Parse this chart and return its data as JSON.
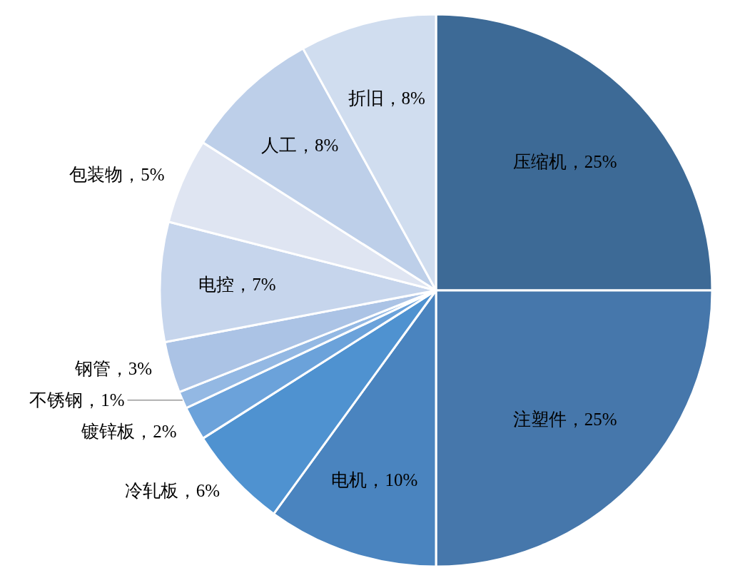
{
  "chart_data": {
    "type": "pie",
    "categories": [
      "压缩机",
      "注塑件",
      "电机",
      "冷轧板",
      "镀锌板",
      "不锈钢",
      "钢管",
      "电控",
      "包装物",
      "人工",
      "折旧"
    ],
    "values": [
      25,
      25,
      10,
      6,
      2,
      1,
      3,
      7,
      5,
      8,
      8
    ],
    "value_labels": [
      "25%",
      "25%",
      "10%",
      "6%",
      "2%",
      "1%",
      "3%",
      "7%",
      "5%",
      "8%",
      "8%"
    ],
    "colors": [
      "#3d6a96",
      "#4677ab",
      "#4a84bf",
      "#4f92d0",
      "#6ba2da",
      "#93b8e3",
      "#abc3e5",
      "#c6d5ec",
      "#dfe5f2",
      "#bdcfe9",
      "#d0ddef"
    ]
  }
}
